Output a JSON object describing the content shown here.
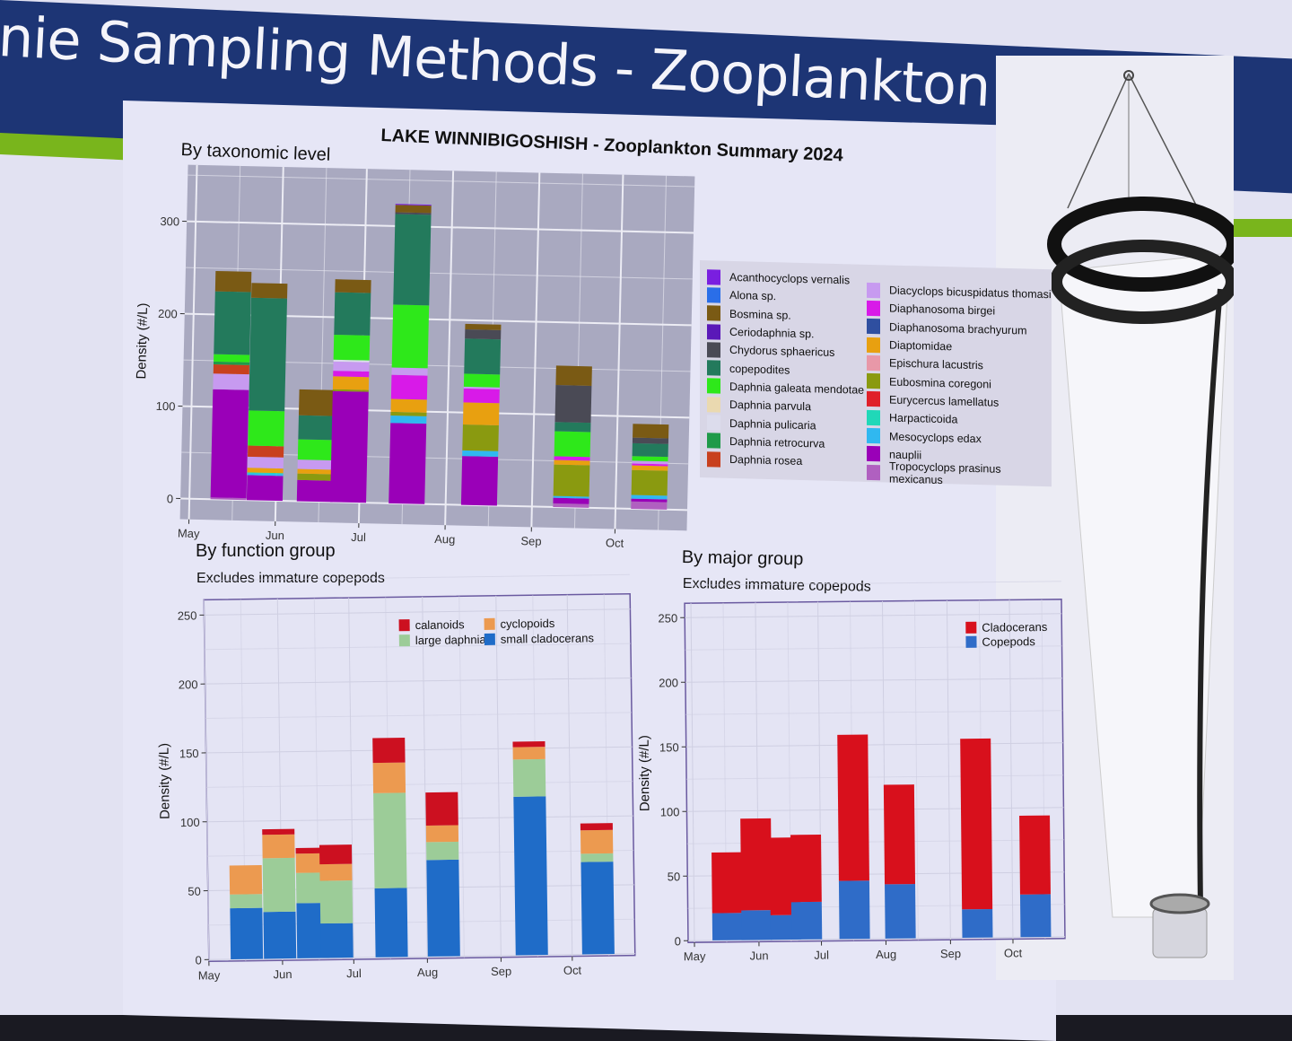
{
  "slide": {
    "title": "nie Sampling Methods - Zooplankton",
    "figure_title": "LAKE WINNIBIGOSHISH - Zooplankton Summary 2024",
    "photo": "plankton-net"
  },
  "colors": {
    "header": "#1d3575",
    "accent": "#79b51c"
  },
  "chart_data": [
    {
      "id": "taxonomic",
      "type": "bar",
      "stacked": true,
      "title": "By taxonomic level",
      "subtitle": "",
      "xlabel": "",
      "ylabel": "Density (#/L)",
      "ylim": [
        0,
        330
      ],
      "yticks": [
        0,
        100,
        200,
        300
      ],
      "xticks": [
        "May",
        "Jun",
        "Jul",
        "Aug",
        "Sep",
        "Oct"
      ],
      "dates": [
        "2024-05-15",
        "2024-05-28",
        "2024-06-15",
        "2024-06-27",
        "2024-07-18",
        "2024-08-13",
        "2024-09-15",
        "2024-10-13"
      ],
      "legend_position": "right",
      "series": [
        {
          "name": "Acanthocyclops vernalis",
          "color": "#7a1fe0",
          "values": [
            0,
            0,
            0,
            0,
            1,
            0,
            0,
            0
          ]
        },
        {
          "name": "Alona sp.",
          "color": "#2a6ee8",
          "values": [
            0,
            0,
            0,
            0,
            0,
            0,
            0,
            0
          ]
        },
        {
          "name": "Bosmina sp.",
          "color": "#7a5a14",
          "values": [
            22,
            16,
            28,
            14,
            8,
            6,
            21,
            15
          ]
        },
        {
          "name": "Ceriodaphnia sp.",
          "color": "#5a18b8",
          "values": [
            0,
            0,
            0,
            0,
            0,
            0,
            0,
            0
          ]
        },
        {
          "name": "Chydorus sphaericus",
          "color": "#4a4a55",
          "values": [
            0,
            0,
            0,
            0,
            2,
            10,
            40,
            6
          ]
        },
        {
          "name": "copepodites",
          "color": "#237a5c",
          "values": [
            68,
            122,
            26,
            46,
            98,
            38,
            10,
            14
          ]
        },
        {
          "name": "Daphnia galeata mendotae",
          "color": "#2ee81a",
          "values": [
            8,
            38,
            22,
            27,
            68,
            14,
            27,
            5
          ]
        },
        {
          "name": "Daphnia parvula",
          "color": "#ead9b0",
          "values": [
            0,
            0,
            0,
            0,
            0,
            0,
            0,
            0
          ]
        },
        {
          "name": "Daphnia pulicaria",
          "color": "#dcdcec",
          "values": [
            0,
            0,
            0,
            2,
            0,
            0,
            0,
            0
          ]
        },
        {
          "name": "Daphnia retrocurva",
          "color": "#1f9a48",
          "values": [
            3,
            0,
            0,
            0,
            0,
            0,
            0,
            0
          ]
        },
        {
          "name": "Daphnia rosea",
          "color": "#c8401e",
          "values": [
            10,
            12,
            0,
            0,
            0,
            0,
            0,
            0
          ]
        },
        {
          "name": "Diacyclops bicuspidatus thomasi",
          "color": "#c79af0",
          "values": [
            17,
            12,
            10,
            10,
            8,
            2,
            0,
            3
          ]
        },
        {
          "name": "Diaphanosoma birgei",
          "color": "#d81ae8",
          "values": [
            0,
            0,
            0,
            6,
            26,
            15,
            4,
            2
          ]
        },
        {
          "name": "Diaphanosoma brachyurum",
          "color": "#2f4fa0",
          "values": [
            0,
            0,
            0,
            0,
            0,
            0,
            0,
            0
          ]
        },
        {
          "name": "Diaptomidae",
          "color": "#e8a010",
          "values": [
            0,
            5,
            5,
            14,
            14,
            24,
            5,
            5
          ]
        },
        {
          "name": "Epischura lacustris",
          "color": "#e898a8",
          "values": [
            0,
            0,
            0,
            0,
            0,
            0,
            0,
            0
          ]
        },
        {
          "name": "Eubosmina coregoni",
          "color": "#8a9a10",
          "values": [
            0,
            0,
            7,
            2,
            4,
            28,
            34,
            27
          ]
        },
        {
          "name": "Eurycercus lamellatus",
          "color": "#e0202a",
          "values": [
            0,
            0,
            0,
            0,
            0,
            0,
            0,
            0
          ]
        },
        {
          "name": "Harpacticoida",
          "color": "#20d8b8",
          "values": [
            0,
            1,
            0,
            0,
            0,
            0,
            0,
            0
          ]
        },
        {
          "name": "Mesocyclops edax",
          "color": "#30b8f0",
          "values": [
            0,
            2,
            0,
            0,
            8,
            6,
            2,
            4
          ]
        },
        {
          "name": "nauplii",
          "color": "#9a00b8",
          "values": [
            117,
            27,
            23,
            120,
            87,
            53,
            6,
            3
          ]
        },
        {
          "name": "Tropocyclops prasinus mexicanus",
          "color": "#b060c0",
          "values": [
            2,
            0,
            0,
            0,
            0,
            0,
            4,
            8
          ]
        }
      ]
    },
    {
      "id": "function",
      "type": "bar",
      "stacked": true,
      "title": "By function group",
      "subtitle": "Excludes immature copepods",
      "xlabel": "",
      "ylabel": "Density (#/L)",
      "ylim": [
        0,
        260
      ],
      "yticks": [
        0,
        50,
        100,
        150,
        200,
        250
      ],
      "xticks": [
        "May",
        "Jun",
        "Jul",
        "Aug",
        "Sep",
        "Oct"
      ],
      "dates": [
        "2024-05-17",
        "2024-05-31",
        "2024-06-14",
        "2024-06-24",
        "2024-07-17",
        "2024-08-08",
        "2024-09-14",
        "2024-10-12"
      ],
      "legend_position": "top-right",
      "series": [
        {
          "name": "calanoids",
          "color": "#cc1020",
          "values": [
            0,
            4,
            4,
            14,
            18,
            24,
            4,
            5
          ]
        },
        {
          "name": "cyclopoids",
          "color": "#ec9a50",
          "values": [
            21,
            17,
            14,
            12,
            22,
            12,
            9,
            17
          ]
        },
        {
          "name": "large daphnia",
          "color": "#9ccc98",
          "values": [
            10,
            39,
            22,
            31,
            69,
            13,
            27,
            6
          ]
        },
        {
          "name": "small cladocerans",
          "color": "#1f6cc8",
          "values": [
            37,
            34,
            40,
            25,
            50,
            70,
            115,
            67
          ]
        }
      ]
    },
    {
      "id": "major",
      "type": "bar",
      "stacked": true,
      "title": "By major group",
      "subtitle": "Excludes immature copepods",
      "xlabel": "",
      "ylabel": "Density (#/L)",
      "ylim": [
        0,
        260
      ],
      "yticks": [
        0,
        50,
        100,
        150,
        200,
        250
      ],
      "xticks": [
        "May",
        "Jun",
        "Jul",
        "Aug",
        "Sep",
        "Oct"
      ],
      "dates": [
        "2024-05-17",
        "2024-05-31",
        "2024-06-14",
        "2024-06-24",
        "2024-07-17",
        "2024-08-08",
        "2024-09-14",
        "2024-10-12"
      ],
      "legend_position": "top-right",
      "series": [
        {
          "name": "Cladocerans",
          "color": "#d8101c",
          "values": [
            47,
            71,
            60,
            52,
            113,
            77,
            132,
            61
          ]
        },
        {
          "name": "Copepods",
          "color": "#2f6cc8",
          "values": [
            21,
            23,
            19,
            29,
            45,
            42,
            22,
            33
          ]
        }
      ]
    }
  ]
}
